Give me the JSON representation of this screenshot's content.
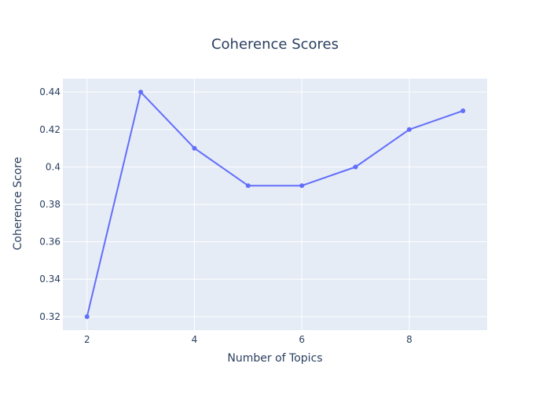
{
  "chart_data": {
    "type": "line",
    "title": "Coherence Scores",
    "xlabel": "Number of Topics",
    "ylabel": "Coherence Score",
    "x": [
      2,
      3,
      4,
      5,
      6,
      7,
      8,
      9
    ],
    "series": [
      {
        "values": [
          0.32,
          0.44,
          0.41,
          0.39,
          0.39,
          0.4,
          0.42,
          0.43
        ],
        "color": "#636efa",
        "mode": "lines+markers"
      }
    ],
    "x_ticks": [
      2,
      4,
      6,
      8
    ],
    "x_tick_labels": [
      "2",
      "4",
      "6",
      "8"
    ],
    "y_ticks": [
      0.32,
      0.34,
      0.36,
      0.38,
      0.4,
      0.42,
      0.44
    ],
    "y_tick_labels": [
      "0.32",
      "0.34",
      "0.36",
      "0.38",
      "0.4",
      "0.42",
      "0.44"
    ],
    "grid": true,
    "legend": "none",
    "colors": {
      "plot_background": "#e5ecf6",
      "grid": "#ffffff",
      "text": "#2a3f5f",
      "series": "#636efa"
    }
  }
}
